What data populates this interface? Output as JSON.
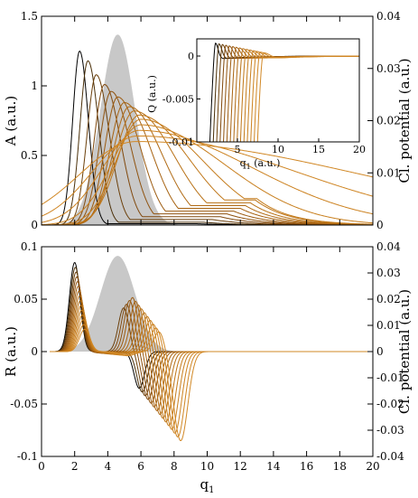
{
  "chart_data": [
    {
      "id": "top",
      "type": "line",
      "ylabel": "A (a.u.)",
      "y2label": "Cl. potential (a.u.)",
      "xlim": [
        0,
        20
      ],
      "ylim": [
        0,
        1.5
      ],
      "y2lim": [
        0,
        0.04
      ],
      "xticks": [
        0,
        2,
        4,
        6,
        8,
        10,
        12,
        14,
        16,
        18,
        20
      ],
      "yticks": [
        "0",
        "0.5",
        "1",
        "1.5"
      ],
      "y2ticks": [
        "0",
        "0.01",
        "0.02",
        "0.03",
        "0.04"
      ],
      "shaded_potential": {
        "center": 4.6,
        "width": 1.05,
        "peak": 0.0365
      },
      "series": [
        {
          "color": "#000000",
          "center": 2.3,
          "peak": 1.25,
          "width": 0.42,
          "skew": 0.25,
          "tail": 0.01
        },
        {
          "color": "#4a2f08",
          "center": 2.8,
          "peak": 1.18,
          "width": 0.48,
          "skew": 0.35,
          "tail": 0.02
        },
        {
          "color": "#6b3f0a",
          "center": 3.3,
          "peak": 1.08,
          "width": 0.55,
          "skew": 0.45,
          "tail": 0.04
        },
        {
          "color": "#80480c",
          "center": 3.8,
          "peak": 1.01,
          "width": 0.62,
          "skew": 0.55,
          "tail": 0.06
        },
        {
          "color": "#8f520e",
          "center": 4.2,
          "peak": 0.96,
          "width": 0.7,
          "skew": 0.65,
          "tail": 0.08
        },
        {
          "color": "#9c5b10",
          "center": 4.6,
          "peak": 0.92,
          "width": 0.78,
          "skew": 0.75,
          "tail": 0.1
        },
        {
          "color": "#a76312",
          "center": 5.0,
          "peak": 0.88,
          "width": 0.88,
          "skew": 0.85,
          "tail": 0.12
        },
        {
          "color": "#b06a14",
          "center": 5.3,
          "peak": 0.85,
          "width": 1.0,
          "skew": 0.95,
          "tail": 0.14
        },
        {
          "color": "#b87116",
          "center": 5.6,
          "peak": 0.82,
          "width": 1.15,
          "skew": 1.1,
          "tail": 0.16
        },
        {
          "color": "#bf7618",
          "center": 5.9,
          "peak": 0.79,
          "width": 1.3,
          "skew": 1.3,
          "tail": 0.18
        },
        {
          "color": "#c47b1b",
          "center": 6.0,
          "peak": 0.76,
          "width": 1.5,
          "skew": 1.5,
          "tail": 0.19
        },
        {
          "color": "#c87f1e",
          "center": 6.0,
          "peak": 0.72,
          "width": 1.8,
          "skew": 1.8,
          "tail": 0.2
        },
        {
          "color": "#cc8220",
          "center": 5.9,
          "peak": 0.68,
          "width": 2.2,
          "skew": 2.1,
          "tail": 0.21
        },
        {
          "color": "#cf8523",
          "center": 5.8,
          "peak": 0.64,
          "width": 2.7,
          "skew": 2.5,
          "tail": 0.22
        },
        {
          "color": "#d18826",
          "center": 5.7,
          "peak": 0.6,
          "width": 3.4,
          "skew": 3.0,
          "tail": 0.22
        }
      ],
      "inset": {
        "ylabel": "Q (a.u.)",
        "xlabel": "q",
        "xlabel_sub": "1",
        "xlabel_unit": " (a.u.)",
        "xlim": [
          0,
          20
        ],
        "ylim": [
          -0.01,
          0.002
        ],
        "xticks": [
          "5",
          "10",
          "15",
          "20"
        ],
        "yticks": [
          "0",
          "-0.005",
          "-0.01"
        ]
      }
    },
    {
      "id": "bottom",
      "type": "line",
      "xlabel": "q",
      "xlabel_sub": "1",
      "ylabel": "R (a.u.)",
      "y2label": "Cl. potential (a.u.)",
      "xlim": [
        0,
        20
      ],
      "ylim": [
        -0.1,
        0.1
      ],
      "y2lim": [
        -0.04,
        0.04
      ],
      "xticks": [
        "0",
        "2",
        "4",
        "6",
        "8",
        "10",
        "12",
        "14",
        "16",
        "18",
        "20"
      ],
      "yticks": [
        "-0.1",
        "-0.05",
        "0",
        "0.05",
        "0.1"
      ],
      "y2ticks": [
        "-0.04",
        "-0.03",
        "-0.02",
        "-0.01",
        "0",
        "0.01",
        "0.02",
        "0.03",
        "0.04"
      ],
      "shaded_potential": {
        "center": 4.6,
        "width": 1.05,
        "peak": 0.0365
      },
      "series_count": 15
    }
  ]
}
